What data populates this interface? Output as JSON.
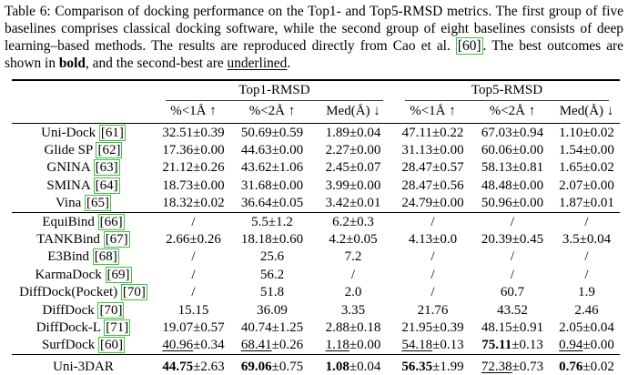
{
  "caption": {
    "parts": [
      {
        "t": "Table 6: Comparison of docking performance on the Top1- and Top5-RMSD metrics. The first group of five baselines comprises classical docking software, while the second group of eight baselines consists of deep learning–based methods. The results are reproduced directly from Cao et al. ",
        "s": "normal"
      },
      {
        "t": "[60]",
        "s": "cite"
      },
      {
        "t": ". The best outcomes are shown in ",
        "s": "normal"
      },
      {
        "t": "bold",
        "s": "bold"
      },
      {
        "t": ", and the second-best are ",
        "s": "normal"
      },
      {
        "t": "underlined",
        "s": "underline"
      },
      {
        "t": ".",
        "s": "normal"
      }
    ]
  },
  "table": {
    "plus_minus": "±",
    "groups": [
      {
        "label": "Top1-RMSD"
      },
      {
        "label": "Top5-RMSD"
      }
    ],
    "subheaders": [
      "%<1Å ↑",
      "%<2Å ↑",
      "Med(Å) ↓",
      "%<1Å ↑",
      "%<2Å ↑",
      "Med(Å) ↓"
    ],
    "sections": [
      {
        "name": "classical-docking-software",
        "rows": [
          {
            "method": "Uni-Dock",
            "cite": "[61]",
            "cells": [
              {
                "v": "32.51",
                "e": "0.39"
              },
              {
                "v": "50.69",
                "e": "0.59"
              },
              {
                "v": "1.89",
                "e": "0.04"
              },
              {
                "v": "47.11",
                "e": "0.22"
              },
              {
                "v": "67.03",
                "e": "0.94"
              },
              {
                "v": "1.10",
                "e": "0.02"
              }
            ]
          },
          {
            "method": "Glide SP",
            "cite": "[62]",
            "cells": [
              {
                "v": "17.36",
                "e": "0.00"
              },
              {
                "v": "44.63",
                "e": "0.00"
              },
              {
                "v": "2.27",
                "e": "0.00"
              },
              {
                "v": "31.13",
                "e": "0.00"
              },
              {
                "v": "60.06",
                "e": "0.00"
              },
              {
                "v": "1.54",
                "e": "0.00"
              }
            ]
          },
          {
            "method": "GNINA",
            "cite": "[63]",
            "cells": [
              {
                "v": "21.12",
                "e": "0.26"
              },
              {
                "v": "43.62",
                "e": "1.06"
              },
              {
                "v": "2.45",
                "e": "0.07"
              },
              {
                "v": "28.47",
                "e": "0.57"
              },
              {
                "v": "58.13",
                "e": "0.81"
              },
              {
                "v": "1.65",
                "e": "0.02"
              }
            ]
          },
          {
            "method": "SMINA",
            "cite": "[64]",
            "cells": [
              {
                "v": "18.73",
                "e": "0.00"
              },
              {
                "v": "31.68",
                "e": "0.00"
              },
              {
                "v": "3.99",
                "e": "0.00"
              },
              {
                "v": "28.47",
                "e": "0.56"
              },
              {
                "v": "48.48",
                "e": "0.00"
              },
              {
                "v": "2.07",
                "e": "0.00"
              }
            ]
          },
          {
            "method": "Vina",
            "cite": "[65]",
            "cells": [
              {
                "v": "18.32",
                "e": "0.02"
              },
              {
                "v": "36.64",
                "e": "0.05"
              },
              {
                "v": "3.42",
                "e": "0.01"
              },
              {
                "v": "24.79",
                "e": "0.00"
              },
              {
                "v": "50.96",
                "e": "0.00"
              },
              {
                "v": "1.87",
                "e": "0.01"
              }
            ]
          }
        ]
      },
      {
        "name": "deep-learning-methods",
        "rows": [
          {
            "method": "EquiBind",
            "cite": "[66]",
            "cells": [
              {
                "v": "/"
              },
              {
                "v": "5.5",
                "e": "1.2"
              },
              {
                "v": "6.2",
                "e": "0.3"
              },
              {
                "v": "/"
              },
              {
                "v": "/"
              },
              {
                "v": "/"
              }
            ]
          },
          {
            "method": "TANKBind",
            "cite": "[67]",
            "cells": [
              {
                "v": "2.66",
                "e": "0.26"
              },
              {
                "v": "18.18",
                "e": "0.60"
              },
              {
                "v": "4.2",
                "e": "0.05"
              },
              {
                "v": "4.13",
                "e": "0.0"
              },
              {
                "v": "20.39",
                "e": "0.45"
              },
              {
                "v": "3.5",
                "e": "0.04"
              }
            ]
          },
          {
            "method": "E3Bind",
            "cite": "[68]",
            "cells": [
              {
                "v": "/"
              },
              {
                "v": "25.6"
              },
              {
                "v": "7.2"
              },
              {
                "v": "/"
              },
              {
                "v": "/"
              },
              {
                "v": "/"
              }
            ]
          },
          {
            "method": "KarmaDock",
            "cite": "[69]",
            "cells": [
              {
                "v": "/"
              },
              {
                "v": "56.2"
              },
              {
                "v": "/"
              },
              {
                "v": "/"
              },
              {
                "v": "/"
              },
              {
                "v": "/"
              }
            ]
          },
          {
            "method": "DiffDock(Pocket)",
            "cite": "[70]",
            "cells": [
              {
                "v": "/"
              },
              {
                "v": "51.8"
              },
              {
                "v": "2.0"
              },
              {
                "v": "/"
              },
              {
                "v": "60.7"
              },
              {
                "v": "1.9"
              }
            ]
          },
          {
            "method": "DiffDock",
            "cite": "[70]",
            "cells": [
              {
                "v": "15.15"
              },
              {
                "v": "36.09"
              },
              {
                "v": "3.35"
              },
              {
                "v": "21.76"
              },
              {
                "v": "43.52"
              },
              {
                "v": "2.46"
              }
            ]
          },
          {
            "method": "DiffDock-L",
            "cite": "[71]",
            "cells": [
              {
                "v": "19.07",
                "e": "0.57"
              },
              {
                "v": "40.74",
                "e": "1.25"
              },
              {
                "v": "2.88",
                "e": "0.18"
              },
              {
                "v": "21.95",
                "e": "0.39"
              },
              {
                "v": "48.15",
                "e": "0.91"
              },
              {
                "v": "2.05",
                "e": "0.04"
              }
            ]
          },
          {
            "method": "SurfDock",
            "cite": "[60]",
            "cells": [
              {
                "v": "40.96",
                "e": "0.34",
                "u": true
              },
              {
                "v": "68.41",
                "e": "0.26",
                "u": true
              },
              {
                "v": "1.18",
                "e": "0.00",
                "u": true
              },
              {
                "v": "54.18",
                "e": "0.13",
                "u": true
              },
              {
                "v": "75.11",
                "e": "0.13",
                "b": true
              },
              {
                "v": "0.94",
                "e": "0.00",
                "u": true
              }
            ]
          }
        ]
      },
      {
        "name": "ours",
        "rows": [
          {
            "method": "Uni-3DAR",
            "cite": null,
            "cells": [
              {
                "v": "44.75",
                "e": "2.63",
                "b": true
              },
              {
                "v": "69.06",
                "e": "0.75",
                "b": true
              },
              {
                "v": "1.08",
                "e": "0.04",
                "b": true
              },
              {
                "v": "56.35",
                "e": "1.99",
                "b": true
              },
              {
                "v": "72.38",
                "e": "0.73",
                "u": true
              },
              {
                "v": "0.76",
                "e": "0.02",
                "b": true
              }
            ]
          }
        ]
      }
    ]
  },
  "colors": {
    "citation_border": "#3fbf3f",
    "text": "#000000",
    "rule": "#000000"
  }
}
